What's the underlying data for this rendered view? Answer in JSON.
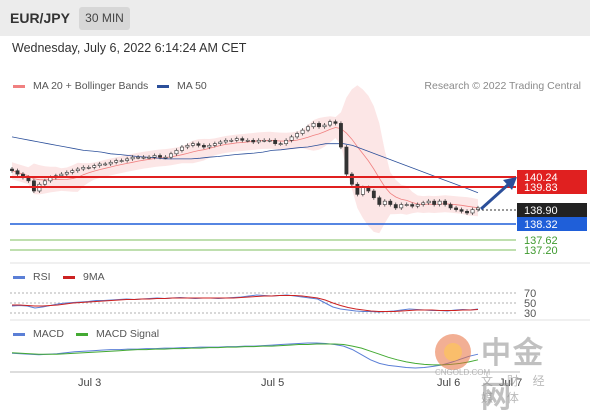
{
  "header": {
    "pair": "EUR/JPY",
    "timeframe": "30 MIN"
  },
  "datetime": "Wednesday, July 6, 2022 6:14:24 AM CET",
  "legend": {
    "ma20": "MA 20 + Bollinger Bands",
    "ma50": "MA 50",
    "rsi": "RSI",
    "rsi_ma": "9MA",
    "macd": "MACD",
    "macd_signal": "MACD Signal"
  },
  "credit": "Research © 2022 Trading Central",
  "colors": {
    "bollinger": "#f08080",
    "ma50": "#2b4f9a",
    "resistance": "#e02020",
    "support_current": "#1f5fd9",
    "support_line": "#7fbf5f",
    "arrow": "#2b4f9a",
    "rsi": "#5b7fd6",
    "rsi_ma": "#cc2222",
    "macd": "#5b7fd6",
    "macd_signal": "#44aa33"
  },
  "chart_data": {
    "type": "line",
    "price_levels": {
      "resistance_1": "140.24",
      "resistance_2": "139.83",
      "current": "138.90",
      "pivot": "138.32",
      "support_1": "137.62",
      "support_2": "137.20"
    },
    "price_range": [
      137.0,
      141.2
    ],
    "close_series": [
      139.7,
      139.6,
      139.5,
      139.4,
      139.1,
      139.3,
      139.4,
      139.5,
      139.55,
      139.6,
      139.65,
      139.7,
      139.75,
      139.8,
      139.8,
      139.85,
      139.9,
      139.9,
      139.95,
      140.0,
      140.0,
      140.05,
      140.1,
      140.1,
      140.1,
      140.1,
      140.15,
      140.1,
      140.1,
      140.2,
      140.3,
      140.4,
      140.45,
      140.5,
      140.45,
      140.4,
      140.45,
      140.5,
      140.55,
      140.6,
      140.6,
      140.65,
      140.6,
      140.6,
      140.55,
      140.6,
      140.6,
      140.6,
      140.5,
      140.5,
      140.6,
      140.7,
      140.8,
      140.9,
      141.0,
      141.1,
      141.0,
      141.05,
      141.15,
      141.1,
      140.4,
      139.6,
      139.3,
      139.0,
      139.2,
      139.1,
      138.9,
      138.7,
      138.8,
      138.7,
      138.6,
      138.7,
      138.7,
      138.65,
      138.7,
      138.75,
      138.8,
      138.7,
      138.8,
      138.7,
      138.6,
      138.55,
      138.5,
      138.45,
      138.55,
      138.6
    ],
    "ma50_series": [
      140.7,
      140.65,
      140.6,
      140.55,
      140.5,
      140.45,
      140.4,
      140.35,
      140.3,
      140.28,
      140.25,
      140.2,
      140.18,
      140.15,
      140.12,
      140.1,
      140.08,
      140.05,
      140.05,
      140.05,
      140.05,
      140.07,
      140.1,
      140.12,
      140.15,
      140.18,
      140.2,
      140.22,
      140.25,
      140.3,
      140.32,
      140.35,
      140.38,
      140.4,
      140.45,
      140.5,
      140.5,
      140.5,
      140.45,
      140.35,
      140.25,
      140.15,
      140.05,
      139.95,
      139.85,
      139.75,
      139.65,
      139.55,
      139.45,
      139.35,
      139.25,
      139.15,
      139.05
    ],
    "rsi_series": [
      44,
      45,
      44,
      40,
      42,
      45,
      48,
      50,
      51,
      52,
      53,
      55,
      55,
      56,
      57,
      58,
      57,
      58,
      59,
      60,
      59,
      60,
      61,
      60,
      59,
      60,
      60,
      59,
      60,
      61,
      62,
      64,
      66,
      65,
      64,
      65,
      66,
      64,
      62,
      60,
      58,
      50,
      42,
      38,
      36,
      34,
      33,
      33,
      32,
      33,
      34,
      36,
      38,
      37,
      36,
      35,
      35,
      34,
      36,
      37,
      36,
      38
    ],
    "rsi_ma_series": [
      46,
      46,
      45,
      44,
      44,
      45,
      46,
      48,
      50,
      51,
      52,
      53,
      54,
      55,
      56,
      57,
      57,
      58,
      58,
      59,
      59,
      60,
      60,
      60,
      60,
      60,
      60,
      60,
      60,
      60,
      61,
      62,
      63,
      64,
      64,
      65,
      65,
      65,
      64,
      62,
      60,
      56,
      50,
      45,
      41,
      38,
      36,
      34,
      33,
      33,
      33,
      34,
      35,
      36,
      36,
      36,
      35,
      35,
      35,
      36,
      36,
      37
    ],
    "rsi_levels": [
      "70",
      "50",
      "30"
    ],
    "macd_series": [
      -0.02,
      -0.03,
      -0.04,
      -0.05,
      -0.04,
      -0.03,
      -0.01,
      0.01,
      0.02,
      0.03,
      0.04,
      0.05,
      0.05,
      0.06,
      0.06,
      0.07,
      0.07,
      0.08,
      0.08,
      0.09,
      0.09,
      0.1,
      0.1,
      0.1,
      0.11,
      0.11,
      0.12,
      0.12,
      0.13,
      0.14,
      0.15,
      0.16,
      0.17,
      0.18,
      0.18,
      0.17,
      0.15,
      0.12,
      0.05,
      -0.05,
      -0.15,
      -0.22,
      -0.26,
      -0.28,
      -0.3,
      -0.31,
      -0.3,
      -0.28,
      -0.25,
      -0.2,
      -0.14,
      -0.08,
      -0.04
    ],
    "macd_signal_series": [
      -0.01,
      -0.02,
      -0.03,
      -0.04,
      -0.04,
      -0.04,
      -0.03,
      -0.02,
      -0.01,
      0.0,
      0.01,
      0.02,
      0.03,
      0.04,
      0.05,
      0.05,
      0.06,
      0.06,
      0.07,
      0.07,
      0.08,
      0.08,
      0.09,
      0.09,
      0.1,
      0.1,
      0.11,
      0.11,
      0.12,
      0.12,
      0.13,
      0.14,
      0.15,
      0.15,
      0.16,
      0.16,
      0.16,
      0.15,
      0.12,
      0.08,
      0.02,
      -0.04,
      -0.1,
      -0.15,
      -0.19,
      -0.22,
      -0.24,
      -0.25,
      -0.25,
      -0.24,
      -0.22,
      -0.19,
      -0.15
    ],
    "x_labels": [
      "Jul 3",
      "Jul 5",
      "Jul 6",
      "Jul 7"
    ]
  },
  "watermark": {
    "cn": "中金网",
    "url": "CNGOLD.COM",
    "sub": "文 财 经 媒 体"
  }
}
